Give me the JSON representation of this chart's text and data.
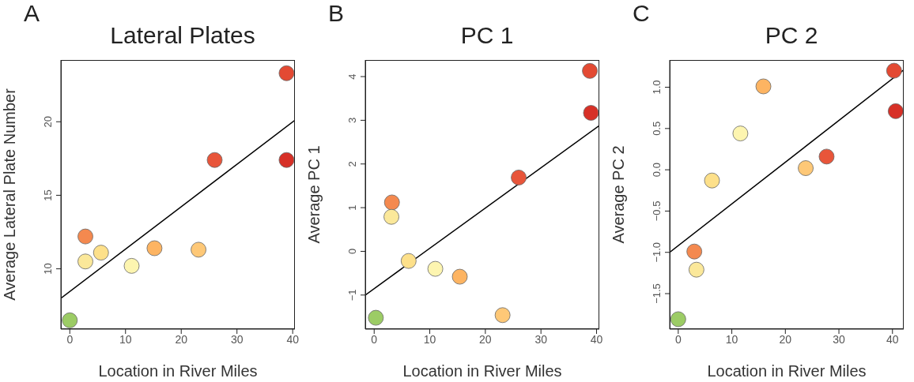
{
  "chart_data": [
    {
      "type": "scatter",
      "title": "Lateral Plates",
      "xlabel": "Location in River Miles",
      "ylabel": "Average Lateral Plate Number",
      "annotations": [
        "A"
      ],
      "marker": "circle",
      "xlim": [
        -1.6,
        40.4
      ],
      "xticks": [
        0,
        10,
        20,
        30,
        40
      ],
      "ylim": [
        5.9,
        24.2
      ],
      "yticks": [
        10,
        15,
        20
      ],
      "series": [
        {
          "x": [
            0,
            2.8,
            2.8,
            5.6,
            11.1,
            15.2,
            23.1,
            26.0,
            38.9,
            38.9
          ],
          "values": [
            6.5,
            12.2,
            10.5,
            11.1,
            10.2,
            11.4,
            11.3,
            17.4,
            17.4,
            23.3
          ],
          "colors": [
            "#9ccc65",
            "#f4894f",
            "#fbe89a",
            "#fde08a",
            "#fdf5b0",
            "#fdb462",
            "#fec877",
            "#e8553a",
            "#d73027",
            "#e34a33"
          ]
        },
        {
          "type": "line",
          "marker": "none",
          "x": [
            -1.6,
            40.4
          ],
          "values": [
            8.0,
            20.1
          ],
          "color": "#000000"
        }
      ]
    },
    {
      "type": "scatter",
      "title": "PC 1",
      "xlabel": "Location in River Miles",
      "ylabel": "Average PC 1",
      "annotations": [
        "B"
      ],
      "marker": "circle",
      "xlim": [
        -1.6,
        40.5
      ],
      "xticks": [
        0,
        10,
        20,
        30,
        40
      ],
      "ylim": [
        -1.78,
        4.38
      ],
      "yticks": [
        {
          "value": -1,
          "label": "−1"
        },
        0,
        1,
        2,
        3,
        4
      ],
      "series": [
        {
          "x": [
            0.3,
            3.2,
            3.1,
            6.2,
            11.0,
            15.4,
            23.1,
            26.0,
            38.8,
            39.0
          ],
          "values": [
            -1.52,
            1.12,
            0.79,
            -0.22,
            -0.4,
            -0.58,
            -1.46,
            1.69,
            4.13,
            3.17
          ],
          "colors": [
            "#9ccc65",
            "#f4894f",
            "#fbe89a",
            "#fde08a",
            "#fdf5b0",
            "#fdb462",
            "#fec877",
            "#e8553a",
            "#e34a33",
            "#d73027"
          ]
        },
        {
          "type": "line",
          "marker": "none",
          "x": [
            -1.6,
            40.5
          ],
          "values": [
            -1.0,
            2.88
          ],
          "color": "#000000"
        }
      ]
    },
    {
      "type": "scatter",
      "title": "PC 2",
      "xlabel": "Location in River Miles",
      "ylabel": "Average PC 2",
      "annotations": [
        "C"
      ],
      "marker": "circle",
      "xlim": [
        -1.6,
        42.1
      ],
      "xticks": [
        0,
        10,
        20,
        30,
        40
      ],
      "ylim": [
        -1.93,
        1.33
      ],
      "yticks": [
        {
          "value": -1.5,
          "label": "−1.5"
        },
        {
          "value": -1,
          "label": "−1.0"
        },
        {
          "value": -0.5,
          "label": "−0.5"
        },
        {
          "value": 0,
          "label": "0.0"
        },
        {
          "value": 0.5,
          "label": "0.5"
        },
        {
          "value": 1,
          "label": "1.0"
        }
      ],
      "series": [
        {
          "x": [
            0,
            3.0,
            3.4,
            6.3,
            11.6,
            15.9,
            23.8,
            27.7,
            40.3,
            40.6
          ],
          "values": [
            -1.81,
            -0.99,
            -1.21,
            -0.13,
            0.44,
            1.01,
            0.02,
            0.16,
            1.2,
            0.71
          ],
          "colors": [
            "#9ccc65",
            "#f4894f",
            "#fbe89a",
            "#fde08a",
            "#fdf5b0",
            "#fdb462",
            "#fec877",
            "#e8553a",
            "#e34a33",
            "#d73027"
          ]
        },
        {
          "type": "line",
          "marker": "none",
          "x": [
            -1.6,
            42.1
          ],
          "values": [
            -1.0,
            1.21
          ],
          "color": "#000000"
        }
      ]
    }
  ]
}
